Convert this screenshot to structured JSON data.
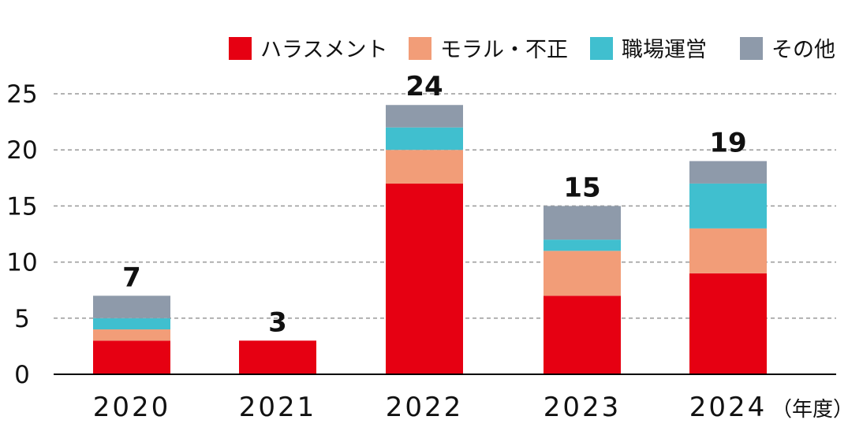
{
  "chart_data": {
    "type": "bar",
    "stacked": true,
    "categories": [
      "2020",
      "2021",
      "2022",
      "2023",
      "2024"
    ],
    "x_unit_label": "（年度）",
    "series": [
      {
        "name": "ハラスメント",
        "color": "#e60012",
        "values": [
          3,
          3,
          17,
          7,
          9
        ]
      },
      {
        "name": "モラル・不正",
        "color": "#f29d78",
        "values": [
          1,
          0,
          3,
          4,
          4
        ]
      },
      {
        "name": "職場運営",
        "color": "#40bfcf",
        "values": [
          1,
          0,
          2,
          1,
          4
        ]
      },
      {
        "name": "その他",
        "color": "#8e9aaa",
        "values": [
          2,
          0,
          2,
          3,
          2
        ]
      }
    ],
    "totals": [
      "7",
      "3",
      "24",
      "15",
      "19"
    ],
    "ylim": [
      0,
      25
    ],
    "yticks": [
      "0",
      "5",
      "10",
      "15",
      "20",
      "25"
    ],
    "grid": "horizontal dashed",
    "legend_position": "top-right"
  }
}
